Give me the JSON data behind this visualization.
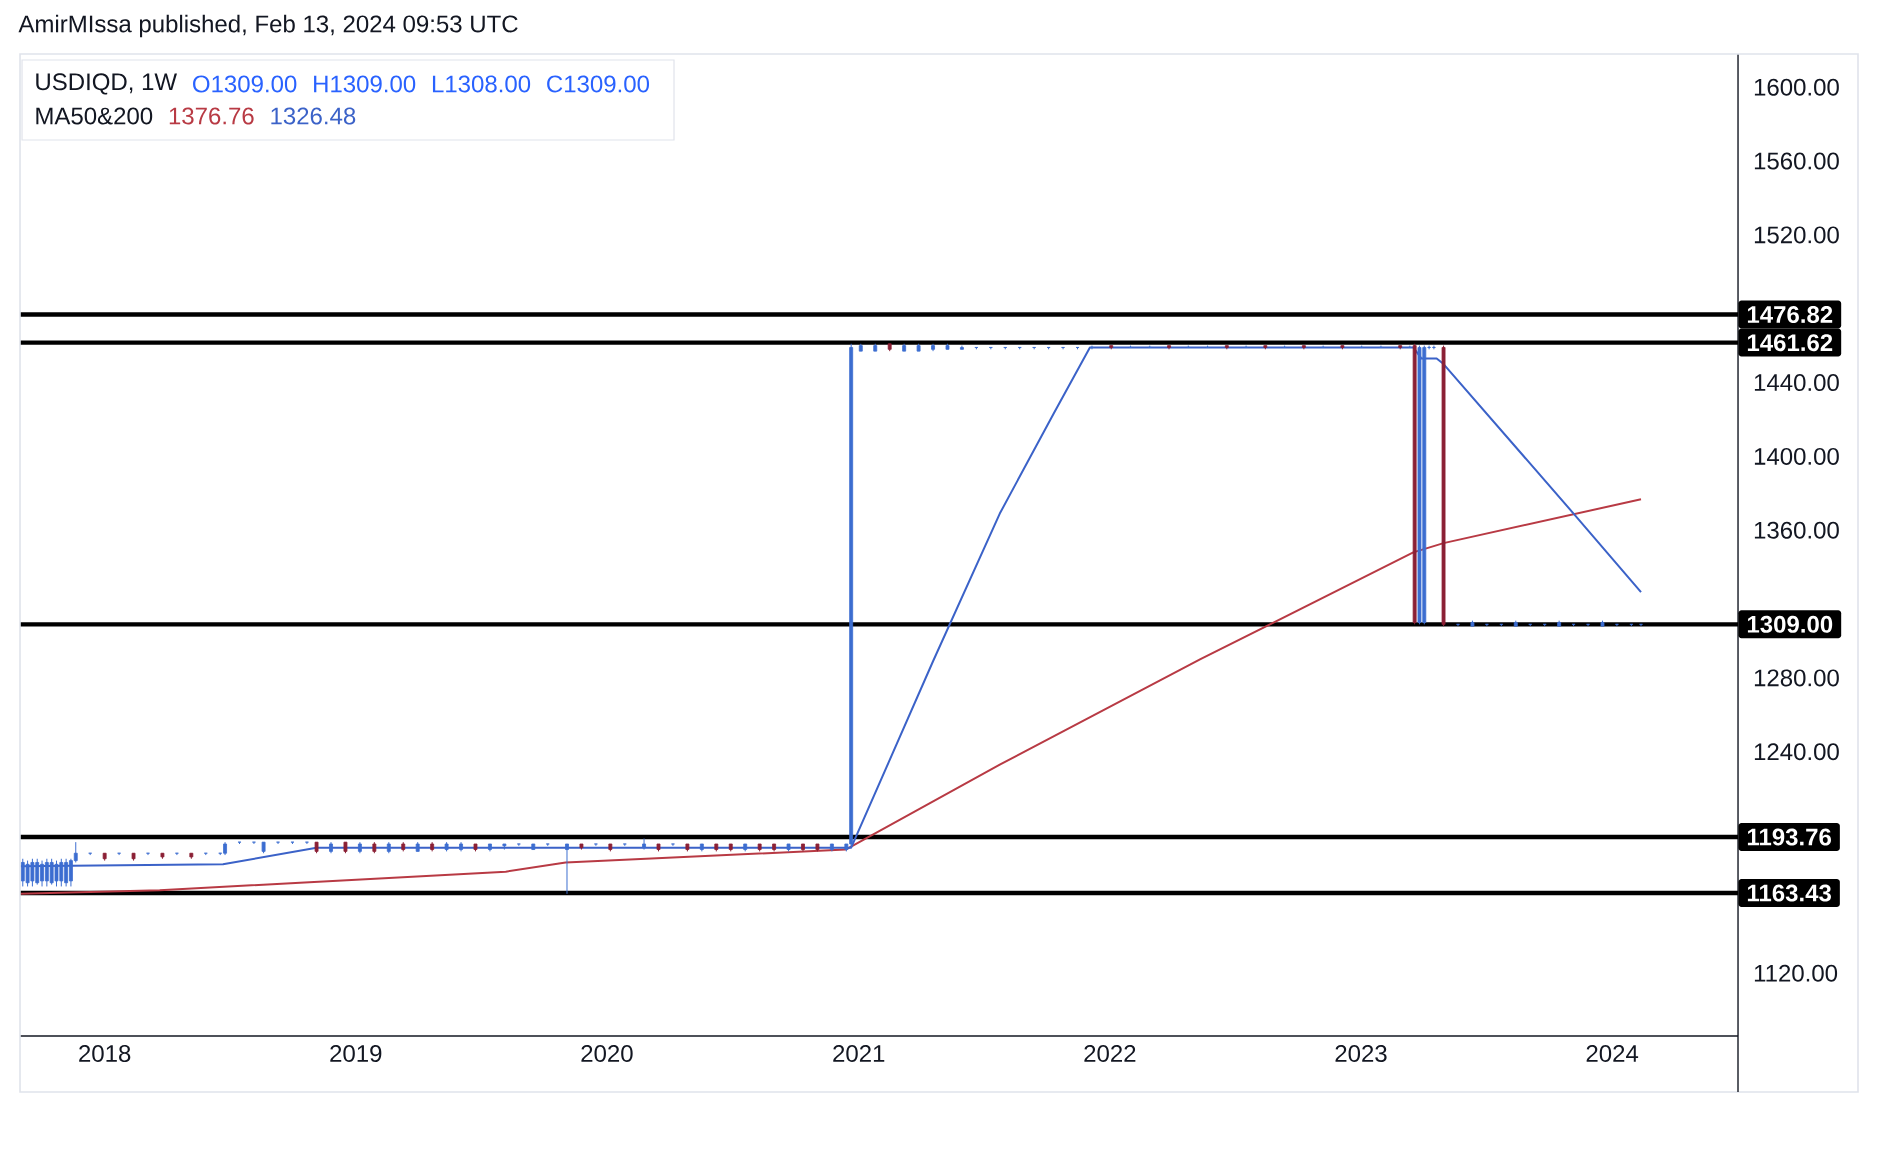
{
  "chart_data": {
    "type": "candlestick",
    "title": "USDIQD, 1W",
    "annotations": [
      "AmirMIssa published, Feb 13, 2024 09:53 UTC",
      "O1309.00",
      "H1309.00",
      "L1308.00",
      "C1309.00",
      "MA50&200",
      "1376.76",
      "1326.48"
    ],
    "xlim": [
      "2017-08-31",
      "2024-07-02"
    ],
    "xticks": [
      "2018",
      "2019",
      "2020",
      "2021",
      "2022",
      "2023",
      "2024"
    ],
    "ylim": [
      1086,
      1618
    ],
    "yticks": [
      {
        "value": 1600,
        "label": "1600.00"
      },
      {
        "value": 1560,
        "label": "1560.00"
      },
      {
        "value": 1520,
        "label": "1520.00"
      },
      {
        "value": 1440,
        "label": "1440.00"
      },
      {
        "value": 1400,
        "label": "1400.00"
      },
      {
        "value": 1360,
        "label": "1360.00"
      },
      {
        "value": 1280,
        "label": "1280.00"
      },
      {
        "value": 1240,
        "label": "1240.00"
      },
      {
        "value": 1120,
        "label": "1120.00"
      }
    ],
    "ref_lines": [
      {
        "axis": "y",
        "value": 1476.82,
        "label": "1476.82"
      },
      {
        "axis": "y",
        "value": 1461.62,
        "label": "1461.62"
      },
      {
        "axis": "y",
        "value": 1309.0,
        "label": "1309.00"
      },
      {
        "axis": "y",
        "value": 1193.76,
        "label": "1193.76"
      },
      {
        "axis": "y",
        "value": 1163.43,
        "label": "1163.43"
      }
    ],
    "series": [
      {
        "type": "line",
        "color": "#b83a44",
        "x": [
          "2017-09-01",
          "2018-03-22",
          "2018-10-12",
          "2019-08-07",
          "2019-11-02",
          "2020-12-13",
          "2021-07-25",
          "2022-05-12",
          "2023-03-18",
          "2023-05-01",
          "2024-02-12"
        ],
        "values": [
          1163,
          1165,
          1169,
          1175,
          1180,
          1187,
          1233,
          1290,
          1348,
          1353,
          1376.76
        ]
      },
      {
        "type": "line",
        "color": "#3b62c8",
        "x": [
          "2017-09-01",
          "2018-06-22",
          "2018-11-05",
          "2020-12-21",
          "2021-04-19",
          "2021-07-25",
          "2021-10-11",
          "2021-12-03",
          "2023-03-18",
          "2023-03-30",
          "2023-04-21",
          "2023-05-01",
          "2023-11-06",
          "2024-02-12"
        ],
        "values": [
          1178,
          1179,
          1188,
          1188,
          1289,
          1369,
          1423,
          1459,
          1459,
          1453,
          1453,
          1450,
          1369,
          1326.48
        ]
      },
      {
        "type": "candlestick",
        "color": "#3c6dd0",
        "x": [
          "2017-09-04",
          "2017-09-11",
          "2017-09-18",
          "2017-09-25",
          "2017-10-02",
          "2017-10-09",
          "2017-10-16",
          "2017-10-23",
          "2017-10-30",
          "2017-11-06",
          "2017-11-13",
          "2017-11-20",
          "2017-12-11",
          "2018-01-22",
          "2018-03-05",
          "2018-04-16",
          "2018-05-28",
          "2018-06-18",
          "2018-06-25",
          "2018-07-16",
          "2018-08-06",
          "2018-08-20",
          "2018-09-10",
          "2018-10-01",
          "2018-10-22",
          "2018-11-26",
          "2019-01-07",
          "2019-02-18",
          "2019-04-01",
          "2019-05-13",
          "2019-06-03",
          "2019-07-15",
          "2019-08-05",
          "2019-08-26",
          "2019-09-16",
          "2019-10-07",
          "2019-11-04",
          "2019-12-16",
          "2020-01-27",
          "2020-02-24",
          "2020-04-06",
          "2020-05-18",
          "2020-07-20",
          "2020-09-21",
          "2020-11-23",
          "2020-12-14",
          "2020-12-21",
          "2021-01-04",
          "2021-01-25",
          "2021-03-08",
          "2021-03-29",
          "2021-04-19",
          "2021-05-10",
          "2021-05-31",
          "2021-06-21",
          "2021-07-12",
          "2021-08-02",
          "2021-08-23",
          "2021-09-13",
          "2021-10-04",
          "2021-10-25",
          "2021-11-15",
          "2021-12-06",
          "2022-01-31",
          "2022-02-28",
          "2022-04-25",
          "2022-05-23",
          "2022-07-18",
          "2022-09-12",
          "2022-11-07",
          "2023-01-02",
          "2023-01-30",
          "2023-03-13",
          "2023-03-27",
          "2023-04-03",
          "2023-04-10",
          "2023-04-17",
          "2023-05-22",
          "2023-06-12",
          "2023-07-03",
          "2023-07-24",
          "2023-08-14",
          "2023-09-04",
          "2023-09-25",
          "2023-10-16",
          "2023-11-06",
          "2023-11-27",
          "2023-12-18",
          "2024-01-08",
          "2024-01-29",
          "2024-02-12"
        ],
        "ohlc": [
          [
            1170,
            1182,
            1167,
            1180
          ],
          [
            1169,
            1181,
            1167,
            1179
          ],
          [
            1170,
            1182,
            1167,
            1180
          ],
          [
            1169,
            1182,
            1168,
            1180
          ],
          [
            1170,
            1181,
            1167,
            1179
          ],
          [
            1170,
            1182,
            1167,
            1180
          ],
          [
            1169,
            1182,
            1168,
            1180
          ],
          [
            1170,
            1181,
            1167,
            1179
          ],
          [
            1170,
            1182,
            1167,
            1180
          ],
          [
            1169,
            1182,
            1167,
            1180
          ],
          [
            1170,
            1182,
            1167,
            1181
          ],
          [
            1181,
            1191,
            1180,
            1185
          ],
          [
            1185,
            1185,
            1184,
            1185
          ],
          [
            1185,
            1185,
            1184,
            1185
          ],
          [
            1185,
            1185,
            1184,
            1185
          ],
          [
            1185,
            1185,
            1184,
            1185
          ],
          [
            1185,
            1185,
            1184,
            1185
          ],
          [
            1185,
            1185,
            1184,
            1185
          ],
          [
            1185,
            1191,
            1184,
            1190
          ],
          [
            1191,
            1191,
            1190,
            1191
          ],
          [
            1191,
            1191,
            1190,
            1191
          ],
          [
            1186,
            1191,
            1185,
            1191
          ],
          [
            1191,
            1191,
            1190,
            1191
          ],
          [
            1191,
            1191,
            1190,
            1191
          ],
          [
            1191,
            1191,
            1190,
            1191
          ],
          [
            1186,
            1191,
            1185,
            1190
          ],
          [
            1186,
            1191,
            1185,
            1190
          ],
          [
            1186,
            1191,
            1185,
            1190
          ],
          [
            1186,
            1191,
            1186,
            1190
          ],
          [
            1187,
            1191,
            1186,
            1190
          ],
          [
            1187,
            1191,
            1186,
            1190
          ],
          [
            1187,
            1190,
            1186,
            1190
          ],
          [
            1189,
            1190,
            1187,
            1190
          ],
          [
            1190,
            1190,
            1189,
            1190
          ],
          [
            1187,
            1190,
            1187,
            1190
          ],
          [
            1190,
            1190,
            1189,
            1190
          ],
          [
            1187,
            1190,
            1163,
            1190
          ],
          [
            1190,
            1190,
            1189,
            1190
          ],
          [
            1190,
            1190,
            1189,
            1190
          ],
          [
            1188,
            1193,
            1187,
            1190
          ],
          [
            1190,
            1190,
            1189,
            1190
          ],
          [
            1187,
            1190,
            1186,
            1190
          ],
          [
            1187,
            1190,
            1186,
            1190
          ],
          [
            1187,
            1190,
            1186,
            1190
          ],
          [
            1187,
            1190,
            1186,
            1190
          ],
          [
            1187,
            1190,
            1186,
            1190
          ],
          [
            1190,
            1461,
            1188,
            1459
          ],
          [
            1457,
            1461,
            1457,
            1460
          ],
          [
            1457,
            1461,
            1457,
            1460
          ],
          [
            1457,
            1461,
            1457,
            1460
          ],
          [
            1457,
            1461,
            1457,
            1460
          ],
          [
            1458,
            1461,
            1457,
            1460
          ],
          [
            1458,
            1461,
            1458,
            1460
          ],
          [
            1458,
            1460,
            1458,
            1459
          ],
          [
            1459,
            1459,
            1458,
            1459
          ],
          [
            1459,
            1459,
            1458,
            1459
          ],
          [
            1459,
            1459,
            1458,
            1459
          ],
          [
            1459,
            1459,
            1458,
            1459
          ],
          [
            1459,
            1459,
            1458,
            1459
          ],
          [
            1459,
            1459,
            1458,
            1459
          ],
          [
            1459,
            1459,
            1458,
            1459
          ],
          [
            1459,
            1459,
            1458,
            1459
          ],
          [
            1459,
            1460,
            1458,
            1459
          ],
          [
            1459,
            1460,
            1459,
            1459
          ],
          [
            1459,
            1460,
            1459,
            1459
          ],
          [
            1459,
            1460,
            1459,
            1459
          ],
          [
            1459,
            1460,
            1459,
            1459
          ],
          [
            1459,
            1460,
            1459,
            1459
          ],
          [
            1459,
            1460,
            1459,
            1459
          ],
          [
            1459,
            1460,
            1459,
            1459
          ],
          [
            1459,
            1460,
            1459,
            1459
          ],
          [
            1459,
            1460,
            1459,
            1459
          ],
          [
            1459,
            1460,
            1459,
            1459
          ],
          [
            1310,
            1460,
            1309,
            1459
          ],
          [
            1310,
            1460,
            1309,
            1459
          ],
          [
            1459,
            1460,
            1458,
            1459
          ],
          [
            1459,
            1460,
            1458,
            1459
          ],
          [
            1309,
            1309,
            1308,
            1309
          ],
          [
            1308,
            1311,
            1308,
            1310
          ],
          [
            1309,
            1309,
            1308,
            1309
          ],
          [
            1309,
            1309,
            1308,
            1309
          ],
          [
            1308,
            1311,
            1308,
            1310
          ],
          [
            1309,
            1309,
            1308,
            1309
          ],
          [
            1309,
            1309,
            1308,
            1309
          ],
          [
            1308,
            1311,
            1308,
            1310
          ],
          [
            1309,
            1309,
            1308,
            1309
          ],
          [
            1309,
            1309,
            1308,
            1309
          ],
          [
            1308,
            1311,
            1308,
            1310
          ],
          [
            1309,
            1309,
            1308,
            1309
          ],
          [
            1309,
            1309,
            1308,
            1309
          ],
          [
            1309,
            1309,
            1308,
            1309
          ]
        ]
      },
      {
        "type": "candlestick",
        "color": "#8b2035",
        "x": [
          "2018-01-01",
          "2018-02-12",
          "2018-03-26",
          "2018-05-07",
          "2018-11-05",
          "2018-12-17",
          "2019-01-28",
          "2019-03-11",
          "2019-04-22",
          "2019-06-24",
          "2019-11-25",
          "2020-01-06",
          "2020-03-16",
          "2020-04-27",
          "2020-06-08",
          "2020-06-29",
          "2020-08-10",
          "2020-08-31",
          "2020-10-12",
          "2020-11-02",
          "2021-02-15",
          "2022-01-03",
          "2022-03-28",
          "2022-06-20",
          "2022-08-15",
          "2022-10-10",
          "2022-12-05",
          "2023-02-27",
          "2023-03-20",
          "2023-05-01"
        ],
        "ohlc": [
          [
            1185,
            1185,
            1181,
            1182
          ],
          [
            1185,
            1185,
            1181,
            1182
          ],
          [
            1185,
            1185,
            1182,
            1183
          ],
          [
            1185,
            1185,
            1182,
            1183
          ],
          [
            1191,
            1191,
            1185,
            1186
          ],
          [
            1191,
            1191,
            1185,
            1186
          ],
          [
            1190,
            1191,
            1185,
            1186
          ],
          [
            1190,
            1191,
            1186,
            1187
          ],
          [
            1190,
            1191,
            1186,
            1187
          ],
          [
            1190,
            1190,
            1186,
            1187
          ],
          [
            1190,
            1190,
            1187,
            1188
          ],
          [
            1190,
            1190,
            1186,
            1187
          ],
          [
            1190,
            1190,
            1186,
            1187
          ],
          [
            1190,
            1190,
            1186,
            1187
          ],
          [
            1190,
            1190,
            1186,
            1187
          ],
          [
            1190,
            1190,
            1186,
            1187
          ],
          [
            1190,
            1190,
            1186,
            1187
          ],
          [
            1190,
            1190,
            1186,
            1187
          ],
          [
            1190,
            1190,
            1186,
            1187
          ],
          [
            1190,
            1190,
            1186,
            1187
          ],
          [
            1461,
            1461,
            1457,
            1458
          ],
          [
            1460,
            1460,
            1458,
            1459
          ],
          [
            1460,
            1460,
            1458,
            1459
          ],
          [
            1460,
            1460,
            1458,
            1459
          ],
          [
            1460,
            1460,
            1458,
            1459
          ],
          [
            1460,
            1460,
            1458,
            1459
          ],
          [
            1460,
            1460,
            1458,
            1459
          ],
          [
            1460,
            1460,
            1458,
            1459
          ],
          [
            1460,
            1461,
            1309,
            1310
          ],
          [
            1459,
            1460,
            1308,
            1309
          ]
        ]
      }
    ]
  }
}
